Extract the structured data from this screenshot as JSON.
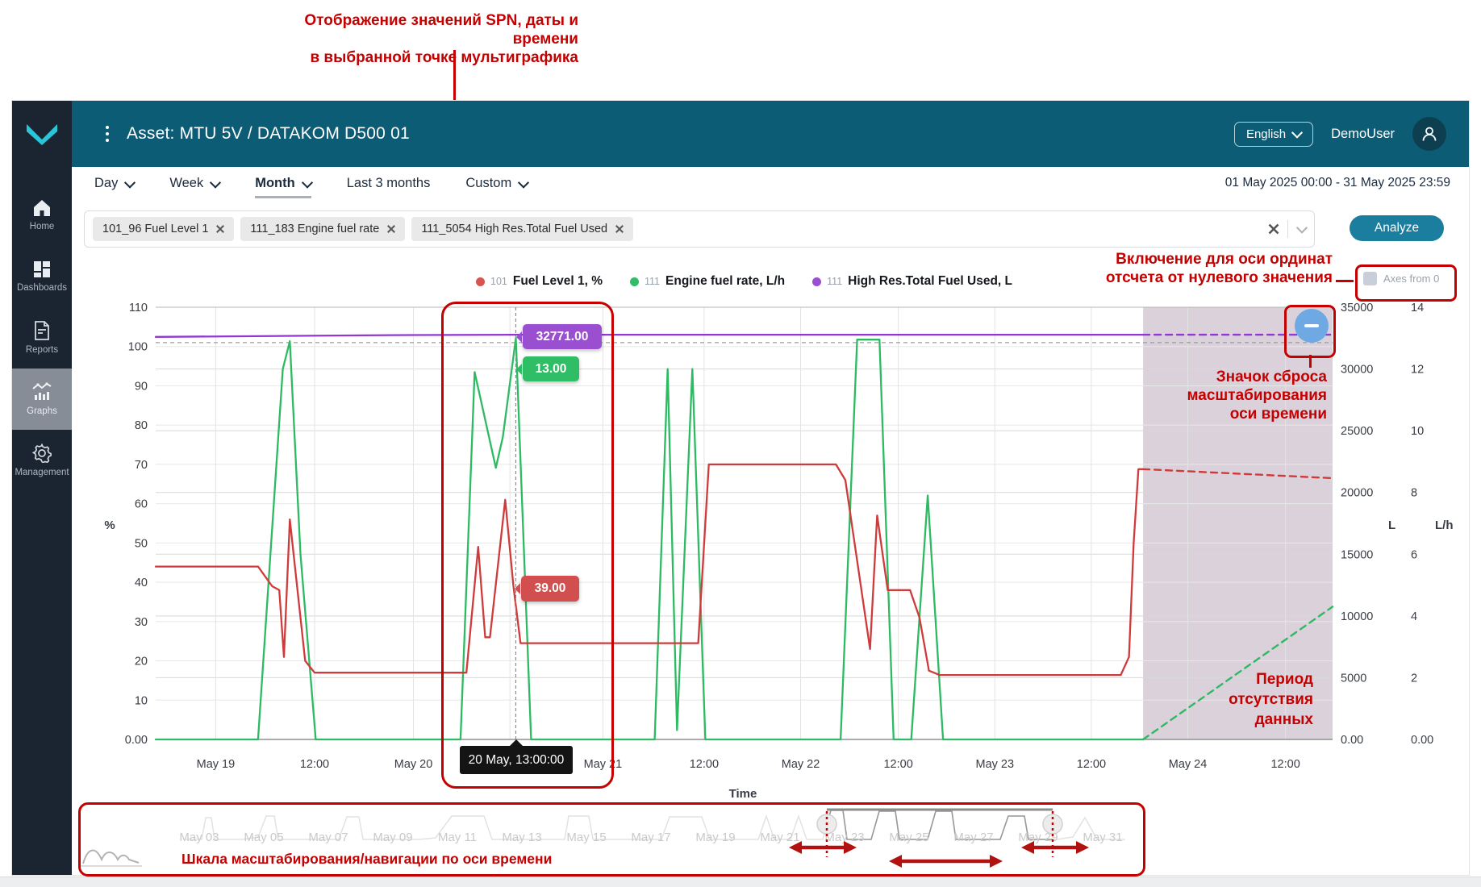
{
  "annotations": {
    "tooltip_note_line1": "Отображение значений SPN, даты и времени",
    "tooltip_note_line2": "в выбранной точке мультиграфика",
    "axes_note_line1": "Включение для оси ординат",
    "axes_note_line2": "отсчета от нулевого значения",
    "reset_note_line1": "Значок сброса",
    "reset_note_line2": "масштабирования",
    "reset_note_line3": "оси времени",
    "nodata_note_line1": "Период",
    "nodata_note_line2": "отсутствия",
    "nodata_note_line3": "данных",
    "navigator_note": "Шкала масштабирования/навигации по оси времени",
    "annotation_color": "#c40000"
  },
  "header": {
    "title": "Asset: MTU 5V / DATAKOM D500 01",
    "language": "English",
    "user": "DemoUser"
  },
  "sidebar": {
    "items": [
      {
        "label": "Home"
      },
      {
        "label": "Dashboards"
      },
      {
        "label": "Reports"
      },
      {
        "label": "Graphs"
      },
      {
        "label": "Management"
      }
    ]
  },
  "toolbar": {
    "tabs": [
      "Day",
      "Week",
      "Month",
      "Last 3 months",
      "Custom"
    ],
    "active_tab": "Month",
    "date_range": "01 May 2025 00:00 - 31 May 2025 23:59",
    "chips": [
      "101_96 Fuel Level 1",
      "111_183 Engine fuel rate",
      "111_5054 High Res.Total Fuel Used"
    ],
    "analyze_label": "Analyze",
    "axes_from_zero_label": "Axes from 0"
  },
  "legend": [
    {
      "num": "101",
      "label": "Fuel Level 1, %",
      "color": "#d9534f"
    },
    {
      "num": "111",
      "label": "Engine fuel rate, L/h",
      "color": "#2fbd66"
    },
    {
      "num": "111",
      "label": "High Res.Total Fuel Used, L",
      "color": "#9a4fd0"
    }
  ],
  "tooltips": {
    "purple_value": "32771.00",
    "green_value": "13.00",
    "red_value": "39.00",
    "time_value": "20 May, 13:00:00"
  },
  "chart_data": {
    "type": "line",
    "title": "",
    "xlabel": "Time",
    "unit_left": "%",
    "unit_right1": "L",
    "unit_right2": "L/h",
    "axis_max": {
      "pct": 110,
      "l": 35000,
      "lh": 14
    },
    "y_left_ticks": [
      {
        "v": 110,
        "label": "110"
      },
      {
        "v": 100,
        "label": "100"
      },
      {
        "v": 90,
        "label": "90"
      },
      {
        "v": 80,
        "label": "80"
      },
      {
        "v": 70,
        "label": "70"
      },
      {
        "v": 60,
        "label": "60"
      },
      {
        "v": 50,
        "label": "50"
      },
      {
        "v": 40,
        "label": "40"
      },
      {
        "v": 30,
        "label": "30"
      },
      {
        "v": 20,
        "label": "20"
      },
      {
        "v": 10,
        "label": "10"
      },
      {
        "v": 0,
        "label": "0.00"
      }
    ],
    "y_right_l_ticks": [
      {
        "v": 35000,
        "label": "35000"
      },
      {
        "v": 30000,
        "label": "30000"
      },
      {
        "v": 25000,
        "label": "25000"
      },
      {
        "v": 20000,
        "label": "20000"
      },
      {
        "v": 15000,
        "label": "15000"
      },
      {
        "v": 10000,
        "label": "10000"
      },
      {
        "v": 5000,
        "label": "5000"
      },
      {
        "v": 0,
        "label": "0.00"
      }
    ],
    "y_right_lh_ticks": [
      {
        "v": 14,
        "label": "14"
      },
      {
        "v": 12,
        "label": "12"
      },
      {
        "v": 10,
        "label": "10"
      },
      {
        "v": 8,
        "label": "8"
      },
      {
        "v": 6,
        "label": "6"
      },
      {
        "v": 4,
        "label": "4"
      },
      {
        "v": 2,
        "label": "2"
      },
      {
        "v": 0,
        "label": "0.00"
      }
    ],
    "x_ticks": [
      {
        "t": 0.051,
        "label": "May 19"
      },
      {
        "t": 0.135,
        "label": "12:00"
      },
      {
        "t": 0.219,
        "label": "May 20"
      },
      {
        "t": 0.301,
        "label": ""
      },
      {
        "t": 0.38,
        "label": "May 21"
      },
      {
        "t": 0.466,
        "label": "12:00"
      },
      {
        "t": 0.548,
        "label": "May 22"
      },
      {
        "t": 0.631,
        "label": "12:00"
      },
      {
        "t": 0.713,
        "label": "May 23"
      },
      {
        "t": 0.795,
        "label": "12:00"
      },
      {
        "t": 0.877,
        "label": "May 24"
      },
      {
        "t": 0.96,
        "label": "12:00"
      }
    ],
    "crosshair_t": 0.306,
    "no_data_from_t": 0.839,
    "no_data_fill": "rgba(136,102,136,0.30)",
    "guide_line": {
      "axis": "pct",
      "value": 101,
      "color": "#9c9c9c"
    },
    "series": [
      {
        "name": "High Res.Total Fuel Used",
        "unit": "L",
        "axis": "l",
        "color": "#9137d2",
        "points": [
          [
            0,
            32600
          ],
          [
            0.2,
            32740
          ],
          [
            0.306,
            32771
          ],
          [
            0.839,
            32771
          ]
        ],
        "dash_points": [
          [
            0.839,
            32771
          ],
          [
            1,
            32771
          ]
        ]
      },
      {
        "name": "Engine fuel rate",
        "unit": "L/h",
        "axis": "lh",
        "color": "#2dba62",
        "points": [
          [
            0,
            0
          ],
          [
            0.087,
            0
          ],
          [
            0.108,
            12
          ],
          [
            0.114,
            12.9
          ],
          [
            0.123,
            6
          ],
          [
            0.136,
            0
          ],
          [
            0.259,
            0
          ],
          [
            0.271,
            11.9
          ],
          [
            0.289,
            8.8
          ],
          [
            0.295,
            9.8
          ],
          [
            0.306,
            13
          ],
          [
            0.319,
            0
          ],
          [
            0.424,
            0
          ],
          [
            0.435,
            12
          ],
          [
            0.443,
            0.3
          ],
          [
            0.456,
            12
          ],
          [
            0.467,
            0
          ],
          [
            0.582,
            0
          ],
          [
            0.596,
            12.95
          ],
          [
            0.615,
            12.95
          ],
          [
            0.627,
            0
          ],
          [
            0.642,
            0
          ],
          [
            0.656,
            7.9
          ],
          [
            0.669,
            0
          ],
          [
            0.839,
            0
          ]
        ],
        "dash_points": [
          [
            0.839,
            0
          ],
          [
            1,
            4.3
          ]
        ]
      },
      {
        "name": "Fuel Level 1",
        "unit": "%",
        "axis": "pct",
        "color": "#cf3b3b",
        "points": [
          [
            0,
            44
          ],
          [
            0.087,
            44
          ],
          [
            0.099,
            39
          ],
          [
            0.105,
            38
          ],
          [
            0.109,
            21
          ],
          [
            0.114,
            56
          ],
          [
            0.127,
            20
          ],
          [
            0.135,
            17
          ],
          [
            0.264,
            17
          ],
          [
            0.274,
            49
          ],
          [
            0.28,
            26
          ],
          [
            0.284,
            26
          ],
          [
            0.297,
            61
          ],
          [
            0.304,
            39
          ],
          [
            0.31,
            24.5
          ],
          [
            0.461,
            24.5
          ],
          [
            0.47,
            70
          ],
          [
            0.578,
            70
          ],
          [
            0.586,
            66
          ],
          [
            0.607,
            23
          ],
          [
            0.613,
            57
          ],
          [
            0.622,
            38
          ],
          [
            0.641,
            38
          ],
          [
            0.649,
            31
          ],
          [
            0.657,
            17.5
          ],
          [
            0.666,
            16.4
          ],
          [
            0.82,
            16.4
          ],
          [
            0.827,
            21
          ],
          [
            0.831,
            50
          ],
          [
            0.835,
            68.8
          ],
          [
            0.839,
            68.8
          ]
        ],
        "dash_points": [
          [
            0.839,
            68.8
          ],
          [
            1,
            66.5
          ]
        ]
      }
    ]
  },
  "navigator": {
    "dates": [
      "May 03",
      "May 05",
      "May 07",
      "May 09",
      "May 11",
      "May 13",
      "May 15",
      "May 17",
      "May 19",
      "May 21",
      "May 23",
      "May 25",
      "May 27",
      "May 29",
      "May 31"
    ]
  }
}
